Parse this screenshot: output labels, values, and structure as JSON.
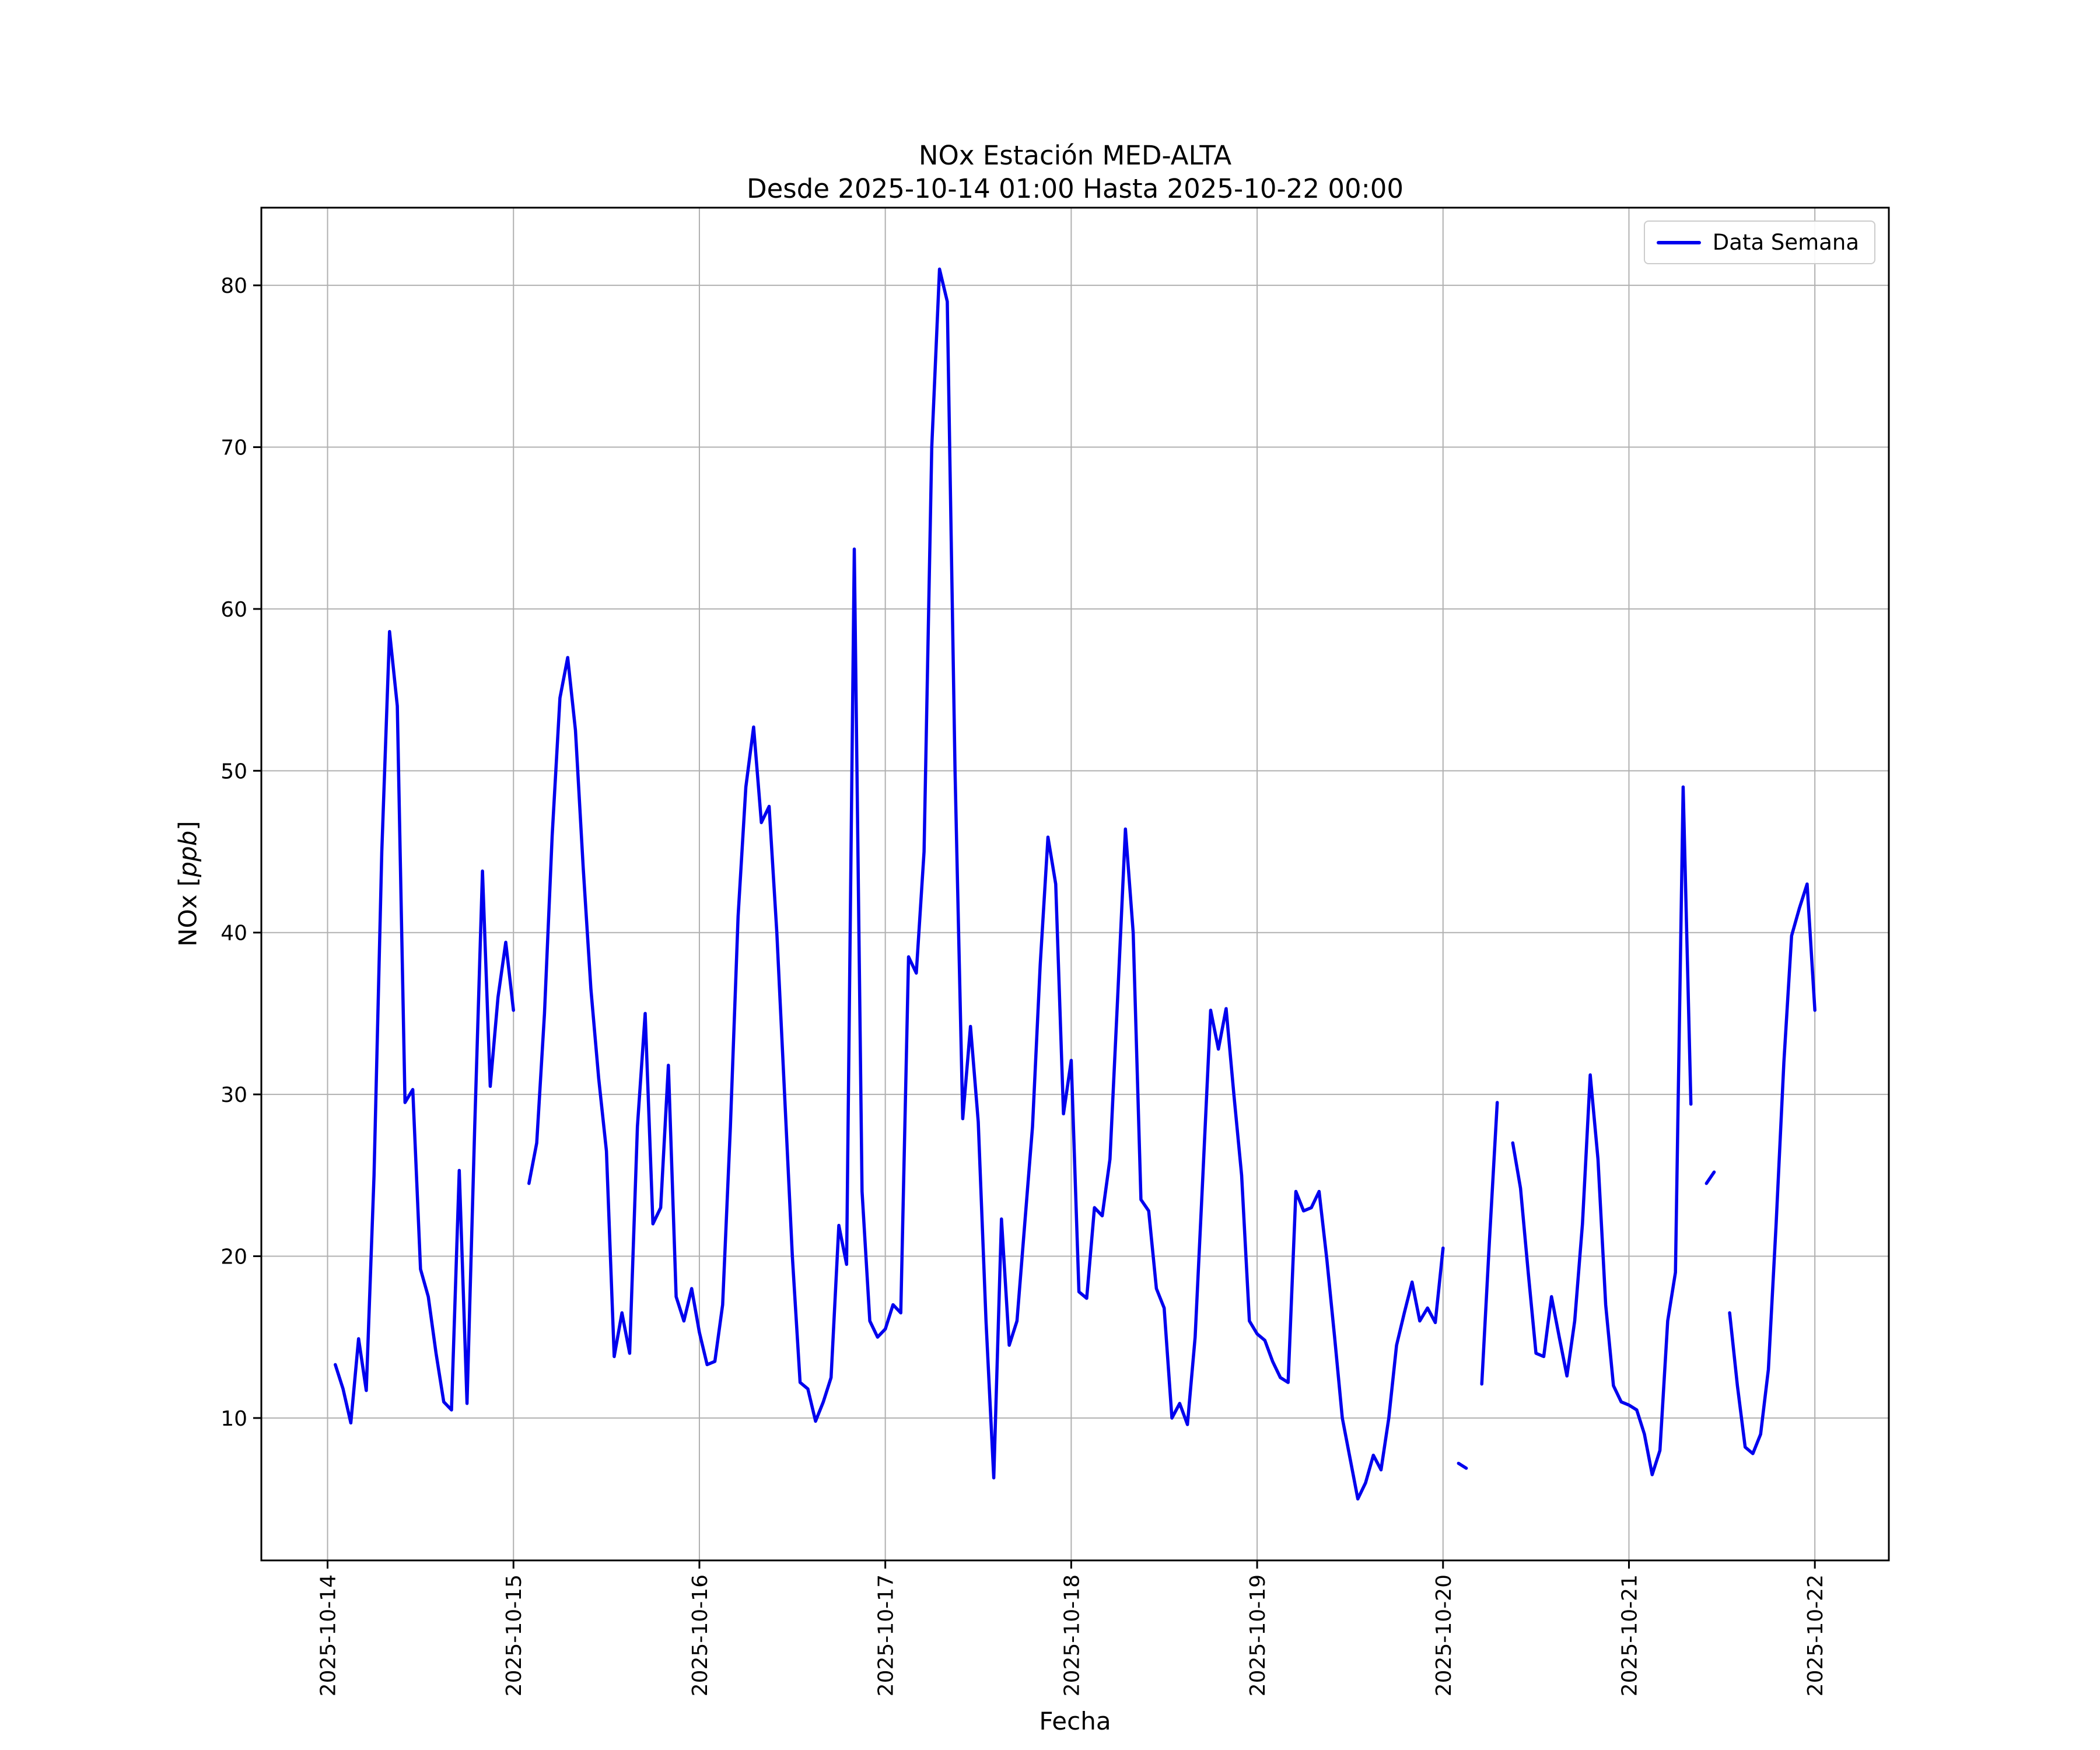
{
  "figure": {
    "title_line1": "NOx Estación MED-ALTA",
    "title_line2": "Desde 2025-10-14 01:00 Hasta 2025-10-22 00:00",
    "xlabel": "Fecha",
    "ylabel_prefix": "NOx [",
    "ylabel_math": "ppb",
    "ylabel_suffix": "]"
  },
  "legend": {
    "label": "Data Semana"
  },
  "chart_data": {
    "type": "line",
    "title": "NOx Estación MED-ALTA\nDesde 2025-10-14 01:00 Hasta 2025-10-22 00:00",
    "xlabel": "Fecha",
    "ylabel": "NOx [ppb]",
    "legend_entries": [
      "Data Semana"
    ],
    "legend_position": "upper right",
    "line_color": "#0000ee",
    "grid": true,
    "grid_color": "#b0b0b0",
    "x_start": "2025-10-14 01:00",
    "x_end": "2025-10-22 00:00",
    "x_interval_hours": 1,
    "x_ticks": {
      "labels": [
        "2025-10-14",
        "2025-10-15",
        "2025-10-16",
        "2025-10-17",
        "2025-10-18",
        "2025-10-19",
        "2025-10-20",
        "2025-10-21",
        "2025-10-22"
      ],
      "hour_indices": [
        -1,
        23,
        47,
        71,
        95,
        119,
        143,
        167,
        191
      ]
    },
    "y_ticks": [
      10,
      20,
      30,
      40,
      50,
      60,
      70,
      80
    ],
    "ylim": [
      1.2,
      84.8
    ],
    "xlim_hours": [
      -9.55,
      200.55
    ],
    "series": [
      {
        "name": "Data Semana",
        "values": [
          13.3,
          11.8,
          9.7,
          14.9,
          11.7,
          25.0,
          45.0,
          58.6,
          54.0,
          29.5,
          30.3,
          19.2,
          17.5,
          14.0,
          11.0,
          10.5,
          25.3,
          10.9,
          28.0,
          43.8,
          30.5,
          36.0,
          39.4,
          35.2,
          null,
          24.5,
          27.0,
          35.0,
          46.0,
          54.5,
          57.0,
          52.5,
          44.0,
          36.5,
          31.0,
          26.5,
          13.8,
          16.5,
          14.0,
          28.0,
          35.0,
          22.0,
          23.0,
          31.8,
          17.5,
          16.0,
          18.0,
          15.3,
          13.3,
          13.5,
          17.0,
          28.0,
          41.0,
          49.0,
          52.7,
          46.8,
          47.8,
          40.0,
          30.0,
          20.0,
          12.2,
          11.8,
          9.8,
          11.0,
          12.5,
          21.9,
          19.5,
          63.7,
          24.0,
          16.0,
          15.0,
          15.5,
          17.0,
          16.5,
          38.5,
          37.5,
          45.0,
          70.0,
          81.0,
          79.0,
          50.0,
          28.5,
          34.2,
          28.3,
          16.0,
          6.3,
          22.3,
          14.5,
          16.0,
          22.0,
          28.0,
          38.0,
          45.9,
          43.0,
          28.8,
          32.1,
          17.8,
          17.4,
          23.0,
          22.5,
          26.0,
          36.0,
          46.4,
          40.0,
          23.5,
          22.8,
          18.0,
          16.8,
          10.0,
          10.9,
          9.6,
          15.0,
          25.0,
          35.2,
          32.8,
          35.3,
          30.0,
          25.0,
          16.0,
          15.2,
          14.8,
          13.5,
          12.5,
          12.2,
          24.0,
          22.8,
          23.0,
          24.0,
          19.8,
          15.0,
          10.0,
          7.5,
          5.0,
          6.0,
          7.7,
          6.8,
          10.0,
          14.5,
          16.5,
          18.4,
          16.0,
          16.8,
          15.9,
          20.5,
          null,
          7.2,
          6.9,
          null,
          12.1,
          21.0,
          29.5,
          null,
          27.0,
          24.2,
          19.0,
          14.0,
          13.8,
          17.5,
          15.0,
          12.6,
          16.0,
          22.0,
          31.2,
          26.0,
          17.0,
          12.0,
          11.0,
          10.8,
          10.5,
          9.0,
          6.5,
          8.0,
          16.0,
          19.0,
          49.0,
          29.4,
          null,
          24.5,
          25.2,
          null,
          16.5,
          12.0,
          8.2,
          7.8,
          9.0,
          13.0,
          22.0,
          32.0,
          39.8,
          41.5,
          43.0,
          35.2
        ]
      }
    ]
  }
}
